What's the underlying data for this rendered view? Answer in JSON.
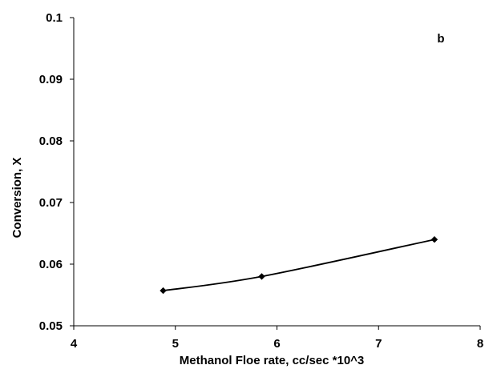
{
  "chart_data": {
    "type": "scatter",
    "title": "",
    "annotation": "b",
    "xlabel": "Methanol Floe rate, cc/sec *10^3",
    "ylabel": "Conversion, X",
    "xlim": [
      4,
      8
    ],
    "ylim": [
      0.05,
      0.1
    ],
    "x_ticks": [
      4,
      5,
      6,
      7,
      8
    ],
    "x_tick_labels": [
      "4",
      "5",
      "6",
      "7",
      "8"
    ],
    "y_ticks": [
      0.05,
      0.06,
      0.07,
      0.08,
      0.09,
      0.1
    ],
    "y_tick_labels": [
      "0.05",
      "0.06",
      "0.07",
      "0.08",
      "0.09",
      "0.1"
    ],
    "grid": false,
    "line_style": "smooth",
    "marker": "diamond",
    "color": "#000000",
    "series": [
      {
        "x": [
          4.88,
          5.85,
          7.55
        ],
        "y": [
          0.0557,
          0.058,
          0.064
        ]
      }
    ]
  }
}
